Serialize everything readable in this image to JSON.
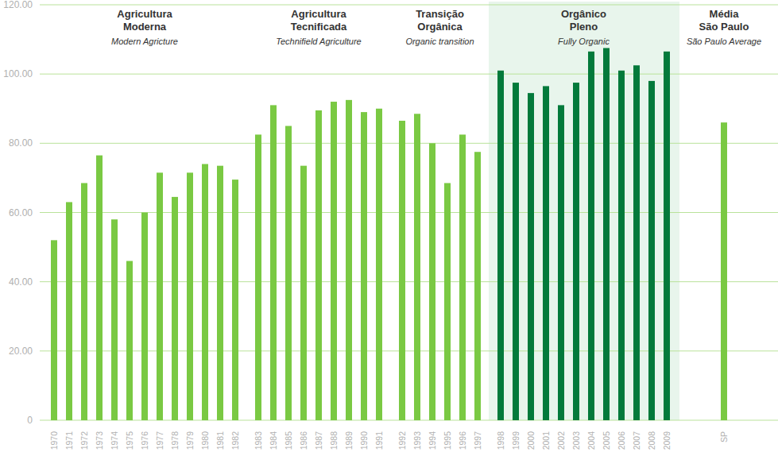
{
  "chart_data": {
    "type": "bar",
    "color": "#7ac943",
    "ylim": [
      0,
      120
    ],
    "yticks": [
      0,
      {
        "value": 20,
        "label": "20.00"
      },
      {
        "value": 40,
        "label": "40.00"
      },
      {
        "value": 60,
        "label": "60.00"
      },
      {
        "value": 80,
        "label": "80.00"
      },
      {
        "value": 100,
        "label": "100.00"
      },
      {
        "value": 120,
        "label": "120.00"
      }
    ],
    "grid": true,
    "groups": [
      {
        "title": [
          "Agricultura",
          "Moderna"
        ],
        "subtitle": "Modern Agricture",
        "color": "#7ac943",
        "categories": [
          "1970",
          "1971",
          "1972",
          "1973",
          "1974",
          "1975",
          "1976",
          "1977",
          "1978",
          "1979",
          "1980",
          "1981",
          "1982"
        ],
        "values": [
          52,
          63,
          68.5,
          76.5,
          58,
          46,
          60,
          71.5,
          64.5,
          71.5,
          74,
          73.5,
          69.5
        ]
      },
      {
        "title": [
          "Agricultura",
          "Tecnificada"
        ],
        "subtitle": "Technifield Agriculture",
        "color": "#7ac943",
        "categories": [
          "1983",
          "1984",
          "1985",
          "1986",
          "1987",
          "1988",
          "1989",
          "1990",
          "1991"
        ],
        "values": [
          82.5,
          91,
          85,
          73.5,
          89.5,
          92,
          92.5,
          89,
          90
        ]
      },
      {
        "title": [
          "Transição",
          "Orgânica"
        ],
        "subtitle": "Organic transition",
        "color": "#7ac943",
        "categories": [
          "1992",
          "1993",
          "1994",
          "1995",
          "1996",
          "1997"
        ],
        "values": [
          86.5,
          88.5,
          80,
          68.5,
          82.5,
          77.5
        ]
      },
      {
        "title": [
          "Orgânico",
          "Pleno"
        ],
        "subtitle": "Fully Organic",
        "color": "#037a3b",
        "categories": [
          "1998",
          "1999",
          "2000",
          "2001",
          "2002",
          "2003",
          "2004",
          "2005",
          "2006",
          "2007",
          "2008",
          "2009"
        ],
        "values": [
          101,
          97.5,
          94.5,
          96.5,
          91,
          97.5,
          106.5,
          107.5,
          101,
          102.5,
          98,
          106.5
        ]
      },
      {
        "title": [
          "Média",
          "São Paulo"
        ],
        "subtitle": "São Paulo Average",
        "color": "#7ac943",
        "categories": [
          "SP"
        ],
        "values": [
          86
        ]
      }
    ]
  }
}
